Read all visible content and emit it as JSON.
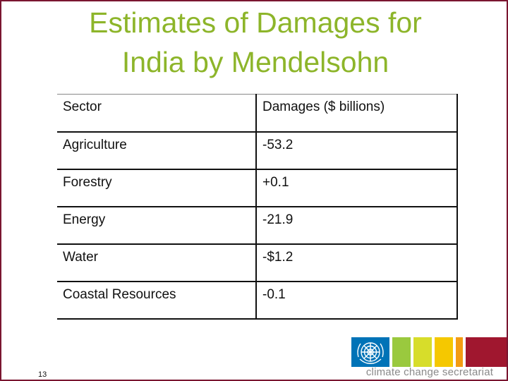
{
  "slide": {
    "title_line1": "Estimates of Damages for",
    "title_line2": "India by Mendelsohn",
    "slide_number": "13"
  },
  "table": {
    "headers": [
      "Sector",
      "Damages ($ billions)"
    ],
    "rows": [
      [
        "Agriculture",
        "-53.2"
      ],
      [
        "Forestry",
        "+0.1"
      ],
      [
        "Energy",
        "-21.9"
      ],
      [
        "Water",
        "-$1.2"
      ],
      [
        "Coastal Resources",
        "-0.1"
      ]
    ]
  },
  "logo": {
    "text": "climate change secretariat",
    "emblem_icon": "un-emblem-icon",
    "colors": [
      "#0073b7",
      "#9ac93e",
      "#d7dd2a",
      "#f5c800",
      "#f39c12",
      "#a0172f"
    ]
  },
  "colors": {
    "title": "#8db52a",
    "frame": "#7a1530"
  }
}
